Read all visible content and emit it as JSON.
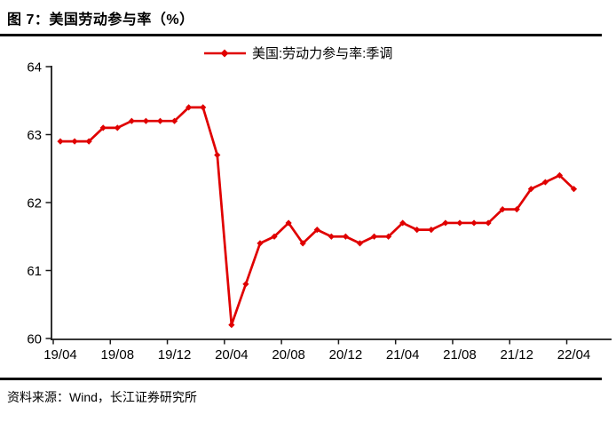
{
  "title": "图 7：美国劳动参与率（%）",
  "source": "资料来源：Wind，长江证券研究所",
  "colors": {
    "line": "#e00000",
    "axis": "#1a1a1a",
    "text": "#000000",
    "rule": "#000000"
  },
  "chart_data": {
    "type": "line",
    "title": "图 7：美国劳动参与率（%）",
    "legend": [
      "美国:劳动力参与率:季调"
    ],
    "legend_position": "top-center",
    "grid": false,
    "ylim": [
      60,
      64
    ],
    "yticks": [
      60,
      61,
      62,
      63,
      64
    ],
    "xtick_labels": [
      "19/04",
      "19/08",
      "19/12",
      "20/04",
      "20/08",
      "20/12",
      "21/04",
      "21/08",
      "21/12",
      "22/04"
    ],
    "x": [
      "19/04",
      "19/05",
      "19/06",
      "19/07",
      "19/08",
      "19/09",
      "19/10",
      "19/11",
      "19/12",
      "20/01",
      "20/02",
      "20/03",
      "20/04",
      "20/05",
      "20/06",
      "20/07",
      "20/08",
      "20/09",
      "20/10",
      "20/11",
      "20/12",
      "21/01",
      "21/02",
      "21/03",
      "21/04",
      "21/05",
      "21/06",
      "21/07",
      "21/08",
      "21/09",
      "21/10",
      "21/11",
      "21/12",
      "22/01",
      "22/02",
      "22/03",
      "22/04"
    ],
    "series": [
      {
        "name": "美国:劳动力参与率:季调",
        "color": "#e00000",
        "marker": "diamond",
        "values": [
          62.9,
          62.9,
          62.9,
          63.1,
          63.1,
          63.2,
          63.2,
          63.2,
          63.2,
          63.4,
          63.4,
          62.7,
          60.2,
          60.8,
          61.4,
          61.5,
          61.7,
          61.4,
          61.6,
          61.5,
          61.5,
          61.4,
          61.5,
          61.5,
          61.7,
          61.6,
          61.6,
          61.7,
          61.7,
          61.7,
          61.7,
          61.9,
          61.9,
          62.2,
          62.3,
          62.4,
          62.2
        ]
      }
    ]
  }
}
